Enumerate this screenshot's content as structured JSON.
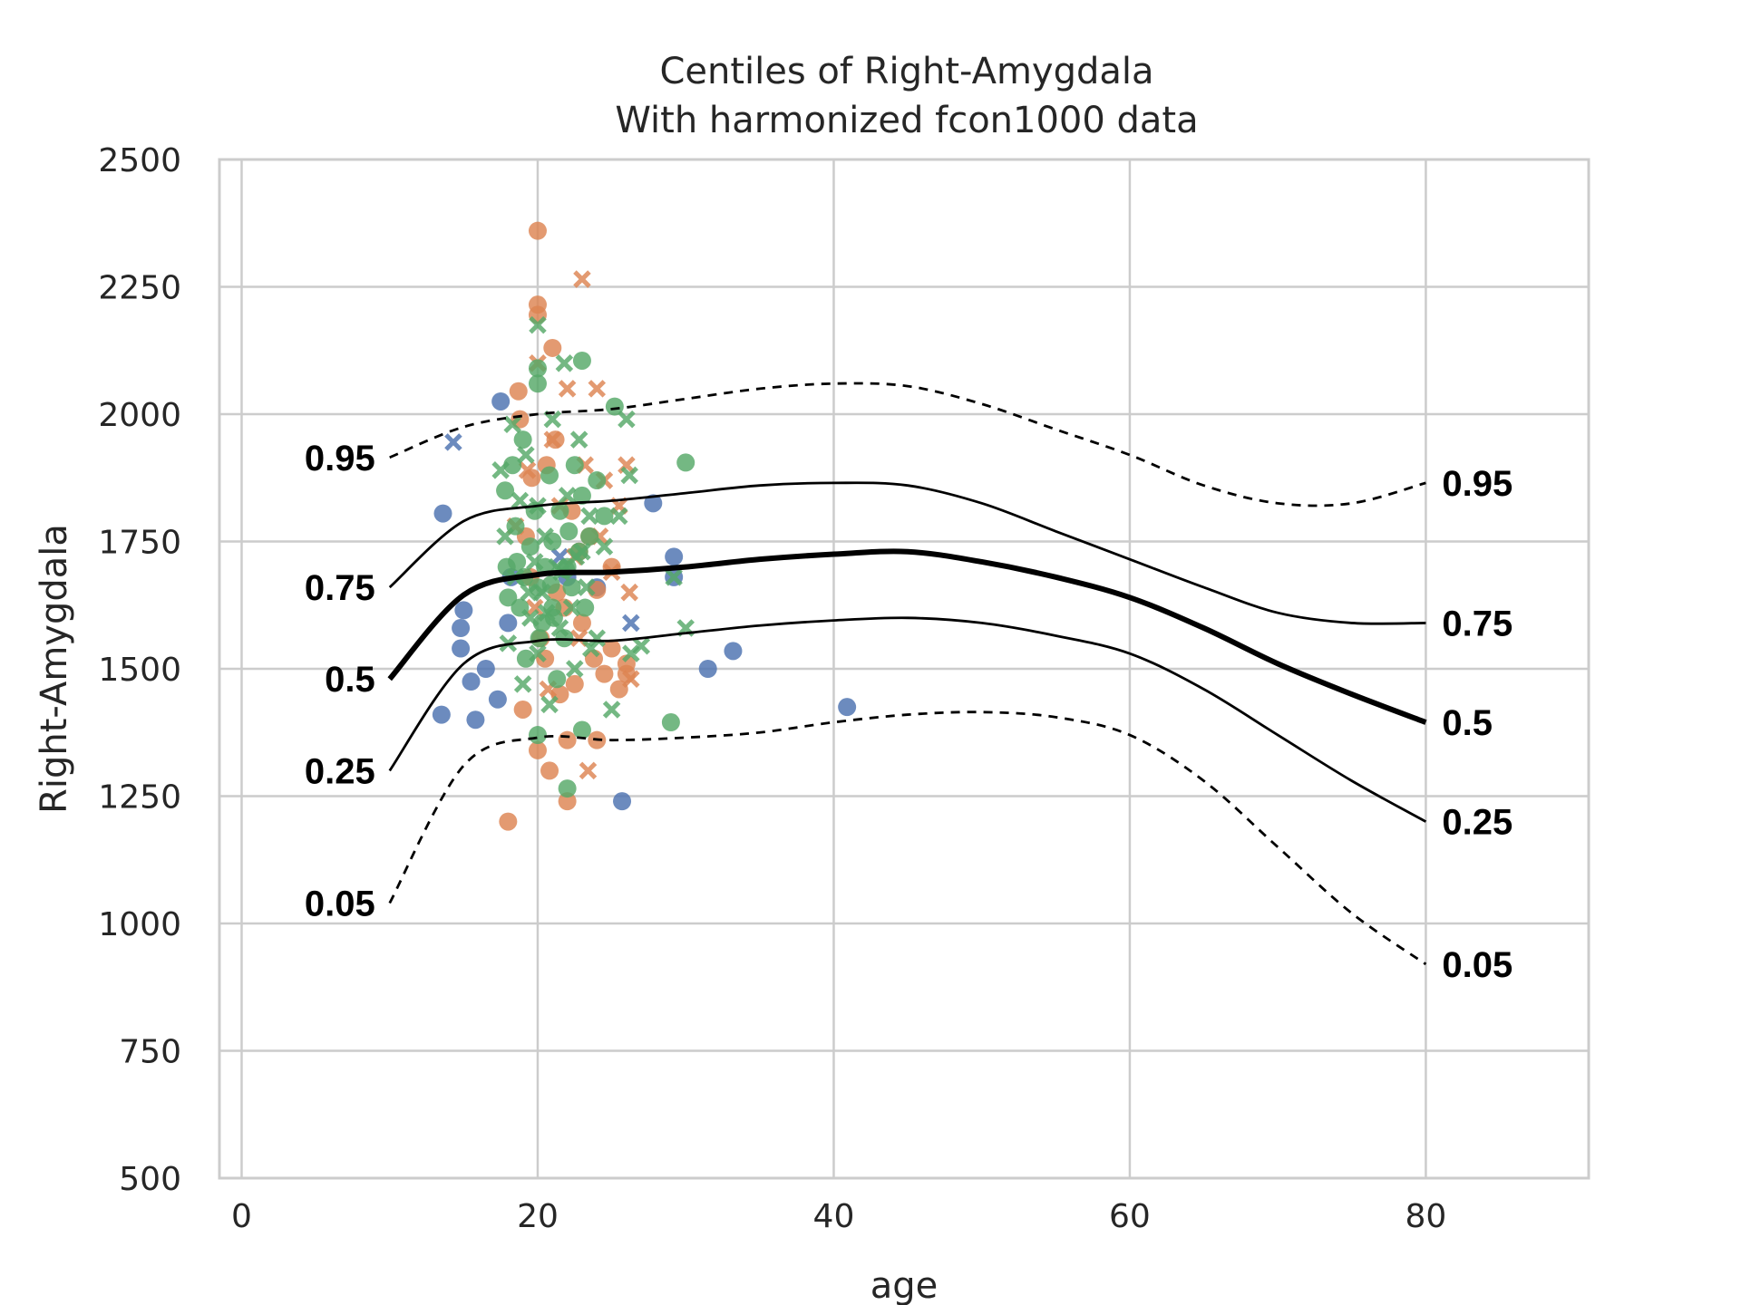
{
  "chart_data": {
    "type": "scatter",
    "title": "Centiles of Right-Amygdala",
    "subtitle": "With harmonized fcon1000 data",
    "xlabel": "age",
    "ylabel": "Right-Amygdala",
    "xlim": [
      -1.5,
      91
    ],
    "ylim": [
      500,
      2500
    ],
    "x_ticks": [
      0,
      20,
      40,
      60,
      80
    ],
    "y_ticks": [
      500,
      750,
      1000,
      1250,
      1500,
      1750,
      2000,
      2250,
      2500
    ],
    "grid": true,
    "colors": {
      "blue": "#4c72b0",
      "orange": "#dd8452",
      "green": "#55a868",
      "centile_line": "#000000"
    },
    "centiles": [
      {
        "label": "0.95",
        "style": "dashed",
        "x": [
          10,
          15,
          20,
          25,
          30,
          35,
          40,
          45,
          50,
          55,
          60,
          65,
          70,
          75,
          80
        ],
        "y": [
          1915,
          1975,
          2000,
          2010,
          2030,
          2050,
          2060,
          2055,
          2020,
          1970,
          1920,
          1860,
          1825,
          1825,
          1865
        ]
      },
      {
        "label": "0.75",
        "style": "solid",
        "x": [
          10,
          15,
          20,
          25,
          30,
          35,
          40,
          45,
          50,
          55,
          60,
          65,
          70,
          75,
          80
        ],
        "y": [
          1660,
          1790,
          1820,
          1830,
          1845,
          1860,
          1865,
          1860,
          1825,
          1770,
          1715,
          1660,
          1610,
          1590,
          1590
        ]
      },
      {
        "label": "0.5",
        "style": "bold",
        "x": [
          10,
          15,
          20,
          25,
          30,
          35,
          40,
          45,
          50,
          55,
          60,
          65,
          70,
          75,
          80
        ],
        "y": [
          1480,
          1645,
          1685,
          1690,
          1700,
          1715,
          1725,
          1730,
          1710,
          1680,
          1640,
          1580,
          1510,
          1450,
          1395
        ]
      },
      {
        "label": "0.25",
        "style": "solid",
        "x": [
          10,
          15,
          20,
          25,
          30,
          35,
          40,
          45,
          50,
          55,
          60,
          65,
          70,
          75,
          80
        ],
        "y": [
          1300,
          1510,
          1555,
          1555,
          1570,
          1585,
          1595,
          1600,
          1590,
          1565,
          1530,
          1460,
          1370,
          1280,
          1200
        ]
      },
      {
        "label": "0.05",
        "style": "dashed",
        "x": [
          10,
          15,
          20,
          25,
          30,
          35,
          40,
          45,
          50,
          55,
          60,
          65,
          70,
          75,
          80
        ],
        "y": [
          1040,
          1310,
          1365,
          1360,
          1365,
          1375,
          1395,
          1410,
          1415,
          1405,
          1370,
          1280,
          1150,
          1020,
          920
        ]
      }
    ],
    "scatter": [
      {
        "color": "blue",
        "marker": "circle",
        "points": [
          [
            13.5,
            1410
          ],
          [
            13.6,
            1805
          ],
          [
            14.8,
            1580
          ],
          [
            14.8,
            1540
          ],
          [
            15,
            1615
          ],
          [
            15.5,
            1475
          ],
          [
            15.8,
            1400
          ],
          [
            16.5,
            1500
          ],
          [
            17.3,
            1440
          ],
          [
            17.5,
            2025
          ],
          [
            18,
            1590
          ],
          [
            18.2,
            1680
          ],
          [
            22,
            1680
          ],
          [
            24,
            1660
          ],
          [
            25.7,
            1240
          ],
          [
            27.8,
            1825
          ],
          [
            29.2,
            1720
          ],
          [
            29.2,
            1680
          ],
          [
            31.5,
            1500
          ],
          [
            33.2,
            1535
          ],
          [
            40.9,
            1425
          ]
        ]
      },
      {
        "color": "blue",
        "marker": "x",
        "points": [
          [
            14.3,
            1945
          ],
          [
            26.3,
            1590
          ],
          [
            21.5,
            1720
          ]
        ]
      },
      {
        "color": "orange",
        "marker": "circle",
        "points": [
          [
            18,
            1200
          ],
          [
            18.7,
            2045
          ],
          [
            18.8,
            1990
          ],
          [
            19,
            1420
          ],
          [
            19.2,
            1760
          ],
          [
            19.5,
            1680
          ],
          [
            20,
            2360
          ],
          [
            20,
            2215
          ],
          [
            20,
            2195
          ],
          [
            20,
            1340
          ],
          [
            20.2,
            1560
          ],
          [
            20.5,
            1520
          ],
          [
            20.8,
            1300
          ],
          [
            21,
            2130
          ],
          [
            21.2,
            1950
          ],
          [
            21.3,
            1650
          ],
          [
            21.5,
            1450
          ],
          [
            22,
            1240
          ],
          [
            22,
            1360
          ],
          [
            22.3,
            1810
          ],
          [
            22.8,
            1730
          ],
          [
            23,
            1590
          ],
          [
            23.5,
            1760
          ],
          [
            24,
            1655
          ],
          [
            24,
            1360
          ],
          [
            24.5,
            1490
          ],
          [
            25,
            1700
          ],
          [
            25,
            1540
          ],
          [
            25.5,
            1460
          ],
          [
            26,
            1490
          ],
          [
            26,
            1510
          ],
          [
            19.6,
            1875
          ],
          [
            20.6,
            1900
          ],
          [
            21.8,
            1620
          ],
          [
            22.5,
            1470
          ],
          [
            23.8,
            1520
          ]
        ]
      },
      {
        "color": "orange",
        "marker": "x",
        "points": [
          [
            18.5,
            1780
          ],
          [
            19.3,
            1890
          ],
          [
            20,
            2100
          ],
          [
            21,
            1950
          ],
          [
            21.5,
            1820
          ],
          [
            22,
            2050
          ],
          [
            22.5,
            1720
          ],
          [
            23,
            2265
          ],
          [
            23.2,
            1900
          ],
          [
            23.4,
            1300
          ],
          [
            24,
            2050
          ],
          [
            24.5,
            1870
          ],
          [
            25,
            1690
          ],
          [
            25.5,
            1820
          ],
          [
            26,
            1900
          ],
          [
            26.2,
            1650
          ],
          [
            26.3,
            1480
          ],
          [
            19.8,
            1620
          ],
          [
            20.7,
            1460
          ],
          [
            22.8,
            1560
          ],
          [
            24.2,
            1760
          ]
        ]
      },
      {
        "color": "green",
        "marker": "circle",
        "points": [
          [
            17.8,
            1850
          ],
          [
            17.9,
            1700
          ],
          [
            18,
            1640
          ],
          [
            18.3,
            1900
          ],
          [
            18.5,
            1780
          ],
          [
            18.8,
            1620
          ],
          [
            19,
            1950
          ],
          [
            19.2,
            1520
          ],
          [
            19.5,
            1740
          ],
          [
            19.8,
            1810
          ],
          [
            20,
            2090
          ],
          [
            20,
            2060
          ],
          [
            20,
            1660
          ],
          [
            20,
            1370
          ],
          [
            20.3,
            1590
          ],
          [
            20.5,
            1700
          ],
          [
            20.8,
            1880
          ],
          [
            21,
            1620
          ],
          [
            21,
            1750
          ],
          [
            21.3,
            1480
          ],
          [
            21.5,
            1810
          ],
          [
            21.8,
            1560
          ],
          [
            22,
            1700
          ],
          [
            22,
            1265
          ],
          [
            22.3,
            1660
          ],
          [
            22.5,
            1900
          ],
          [
            22.8,
            1730
          ],
          [
            23,
            2105
          ],
          [
            23,
            1840
          ],
          [
            23,
            1380
          ],
          [
            23.2,
            1620
          ],
          [
            23.5,
            1760
          ],
          [
            24,
            1870
          ],
          [
            24.5,
            1800
          ],
          [
            25.2,
            2015
          ],
          [
            29,
            1395
          ],
          [
            30,
            1905
          ],
          [
            19.1,
            1680
          ],
          [
            20.1,
            1560
          ],
          [
            21.1,
            1600
          ],
          [
            22.1,
            1770
          ],
          [
            18.6,
            1710
          ],
          [
            20.9,
            1665
          ],
          [
            21.9,
            1695
          ]
        ]
      },
      {
        "color": "green",
        "marker": "x",
        "points": [
          [
            17.5,
            1890
          ],
          [
            17.8,
            1760
          ],
          [
            18,
            1550
          ],
          [
            18.3,
            1980
          ],
          [
            18.5,
            1680
          ],
          [
            18.8,
            1830
          ],
          [
            19,
            1470
          ],
          [
            19.2,
            1920
          ],
          [
            19.5,
            1600
          ],
          [
            19.8,
            1710
          ],
          [
            20,
            2175
          ],
          [
            20,
            1820
          ],
          [
            20,
            1530
          ],
          [
            20.3,
            1650
          ],
          [
            20.5,
            1760
          ],
          [
            20.8,
            1430
          ],
          [
            21,
            1990
          ],
          [
            21.3,
            1700
          ],
          [
            21.5,
            1580
          ],
          [
            21.8,
            2100
          ],
          [
            22,
            1840
          ],
          [
            22.3,
            1620
          ],
          [
            22.5,
            1500
          ],
          [
            22.8,
            1950
          ],
          [
            23,
            1730
          ],
          [
            23.3,
            1660
          ],
          [
            23.5,
            1800
          ],
          [
            24,
            1560
          ],
          [
            24.5,
            1740
          ],
          [
            25,
            1420
          ],
          [
            25.5,
            1800
          ],
          [
            26,
            1990
          ],
          [
            26.2,
            1880
          ],
          [
            26.3,
            1530
          ],
          [
            27,
            1545
          ],
          [
            29.2,
            1680
          ],
          [
            30,
            1580
          ],
          [
            19.4,
            1650
          ],
          [
            20.6,
            1610
          ],
          [
            21.6,
            1690
          ],
          [
            22.6,
            1720
          ],
          [
            23.6,
            1540
          ]
        ]
      }
    ]
  }
}
